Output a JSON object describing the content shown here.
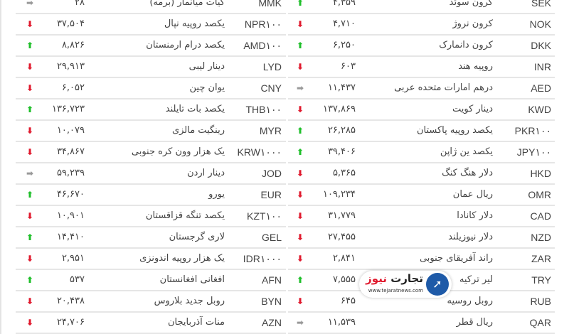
{
  "colors": {
    "up": "#1fbf2a",
    "down": "#e0192d",
    "same": "#999999"
  },
  "left_table": [
    {
      "code": "MMK",
      "name": "کیات میانمار (برمه)",
      "value": "۲۸",
      "trend": "same"
    },
    {
      "code": "NPR۱۰۰",
      "name": "یکصد روپیه نپال",
      "value": "۳۷,۵۰۴",
      "trend": "down"
    },
    {
      "code": "AMD۱۰۰",
      "name": "یکصد درام ارمنستان",
      "value": "۸,۸۲۶",
      "trend": "up"
    },
    {
      "code": "LYD",
      "name": "دینار لیبی",
      "value": "۲۹,۹۱۳",
      "trend": "down"
    },
    {
      "code": "CNY",
      "name": "یوان چین",
      "value": "۶,۰۵۲",
      "trend": "down"
    },
    {
      "code": "THB۱۰۰",
      "name": "یکصد بات تایلند",
      "value": "۱۳۶,۷۲۳",
      "trend": "up"
    },
    {
      "code": "MYR",
      "name": "رینگیت مالزی",
      "value": "۱۰,۰۷۹",
      "trend": "down"
    },
    {
      "code": "KRW۱۰۰۰",
      "name": "یک هزار وون کره جنوبی",
      "value": "۳۴,۸۶۷",
      "trend": "down"
    },
    {
      "code": "JOD",
      "name": "دینار اردن",
      "value": "۵۹,۲۳۹",
      "trend": "same"
    },
    {
      "code": "EUR",
      "name": "یورو",
      "value": "۴۶,۶۷۰",
      "trend": "up"
    },
    {
      "code": "KZT۱۰۰",
      "name": "یکصد تنگه قزاقستان",
      "value": "۱۰,۹۰۱",
      "trend": "down"
    },
    {
      "code": "GEL",
      "name": "لاری گرجستان",
      "value": "۱۴,۴۱۰",
      "trend": "up"
    },
    {
      "code": "IDR۱۰۰۰",
      "name": "یک هزار روپیه اندونزی",
      "value": "۲,۹۵۱",
      "trend": "down"
    },
    {
      "code": "AFN",
      "name": "افغانی افغانستان",
      "value": "۵۳۷",
      "trend": "up"
    },
    {
      "code": "BYN",
      "name": "روبل جدید بلاروس",
      "value": "۲۰,۴۳۸",
      "trend": "down"
    },
    {
      "code": "AZN",
      "name": "منات آذربایجان",
      "value": "۲۴,۷۰۶",
      "trend": "down"
    }
  ],
  "right_table": [
    {
      "code": "SEK",
      "name": "کرون سوئد",
      "value": "۴,۳۵۹",
      "trend": "up"
    },
    {
      "code": "NOK",
      "name": "کرون نروژ",
      "value": "۴,۷۱۰",
      "trend": "down"
    },
    {
      "code": "DKK",
      "name": "کرون دانمارک",
      "value": "۶,۲۵۰",
      "trend": "up"
    },
    {
      "code": "INR",
      "name": "روپیه هند",
      "value": "۶۰۳",
      "trend": "down"
    },
    {
      "code": "AED",
      "name": "درهم امارات متحده عربی",
      "value": "۱۱,۴۳۷",
      "trend": "same"
    },
    {
      "code": "KWD",
      "name": "دینار کویت",
      "value": "۱۳۷,۸۶۹",
      "trend": "down"
    },
    {
      "code": "PKR۱۰۰",
      "name": "یکصد روپیه پاکستان",
      "value": "۲۶,۲۸۵",
      "trend": "up"
    },
    {
      "code": "JPY۱۰۰",
      "name": "یکصد ین ژاپن",
      "value": "۳۹,۴۰۶",
      "trend": "up"
    },
    {
      "code": "HKD",
      "name": "دلار هنگ کنگ",
      "value": "۵,۳۶۵",
      "trend": "down"
    },
    {
      "code": "OMR",
      "name": "ریال عمان",
      "value": "۱۰۹,۲۳۴",
      "trend": "down"
    },
    {
      "code": "CAD",
      "name": "دلار کانادا",
      "value": "۳۱,۷۷۹",
      "trend": "down"
    },
    {
      "code": "NZD",
      "name": "دلار نیوزیلند",
      "value": "۲۷,۴۵۵",
      "trend": "down"
    },
    {
      "code": "ZAR",
      "name": "راند آفریقای جنوبی",
      "value": "۲,۸۴۱",
      "trend": "down"
    },
    {
      "code": "TRY",
      "name": "لیر ترکیه",
      "value": "۷,۵۵۵",
      "trend": "up"
    },
    {
      "code": "RUB",
      "name": "روبل روسیه",
      "value": "۶۴۵",
      "trend": "down"
    },
    {
      "code": "QAR",
      "name": "ریال قطر",
      "value": "۱۱,۵۳۹",
      "trend": "same"
    }
  ],
  "logo": {
    "name_part1": "تجارت",
    "name_part2": "نیوز",
    "url": "www.tejaratnews.com"
  }
}
